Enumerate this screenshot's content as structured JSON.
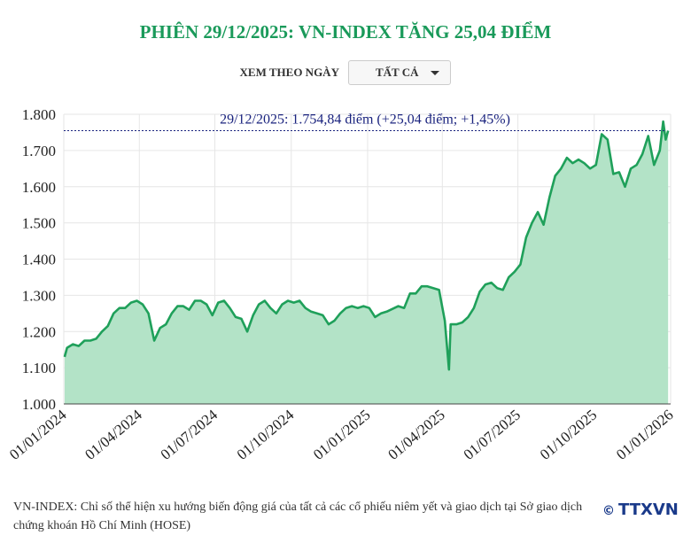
{
  "chart_data": {
    "type": "area",
    "title": "PHIÊN 29/12/2025: VN-INDEX TĂNG 25,04 ĐIỂM",
    "filter_label": "XEM THEO NGÀY",
    "filter_value": "TẤT CẢ",
    "reference_line": {
      "value": 1754.84,
      "label": "29/12/2025: 1.754,84 điểm (+25,04 điểm; +1,45%)",
      "color": "#1a237e"
    },
    "x": [
      "02/01/2024",
      "05/01/2024",
      "12/01/2024",
      "19/01/2024",
      "26/01/2024",
      "02/02/2024",
      "09/02/2024",
      "16/02/2024",
      "23/02/2024",
      "01/03/2024",
      "08/03/2024",
      "15/03/2024",
      "22/03/2024",
      "29/03/2024",
      "05/04/2024",
      "12/04/2024",
      "19/04/2024",
      "26/04/2024",
      "03/05/2024",
      "10/05/2024",
      "17/05/2024",
      "24/05/2024",
      "31/05/2024",
      "07/06/2024",
      "14/06/2024",
      "21/06/2024",
      "28/06/2024",
      "05/07/2024",
      "12/07/2024",
      "19/07/2024",
      "26/07/2024",
      "02/08/2024",
      "09/08/2024",
      "16/08/2024",
      "23/08/2024",
      "30/08/2024",
      "06/09/2024",
      "13/09/2024",
      "20/09/2024",
      "27/09/2024",
      "04/10/2024",
      "11/10/2024",
      "18/10/2024",
      "25/10/2024",
      "01/11/2024",
      "08/11/2024",
      "15/11/2024",
      "22/11/2024",
      "29/11/2024",
      "06/12/2024",
      "13/12/2024",
      "20/12/2024",
      "27/12/2024",
      "03/01/2025",
      "10/01/2025",
      "17/01/2025",
      "24/01/2025",
      "07/02/2025",
      "14/02/2025",
      "21/02/2025",
      "28/02/2025",
      "07/03/2025",
      "14/03/2025",
      "21/03/2025",
      "28/03/2025",
      "04/04/2025",
      "09/04/2025",
      "11/04/2025",
      "18/04/2025",
      "25/04/2025",
      "02/05/2025",
      "09/05/2025",
      "16/05/2025",
      "23/05/2025",
      "30/05/2025",
      "06/06/2025",
      "13/06/2025",
      "20/06/2025",
      "27/06/2025",
      "04/07/2025",
      "11/07/2025",
      "18/07/2025",
      "25/07/2025",
      "01/08/2025",
      "08/08/2025",
      "15/08/2025",
      "22/08/2025",
      "29/08/2025",
      "05/09/2025",
      "12/09/2025",
      "19/09/2025",
      "26/09/2025",
      "03/10/2025",
      "10/10/2025",
      "17/10/2025",
      "24/10/2025",
      "31/10/2025",
      "07/11/2025",
      "14/11/2025",
      "21/11/2025",
      "28/11/2025",
      "05/12/2025",
      "12/12/2025",
      "19/12/2025",
      "23/12/2025",
      "26/12/2025",
      "29/12/2025"
    ],
    "series": [
      {
        "name": "VN-INDEX",
        "color": "#1fa05a",
        "fill": "#b3e3c7",
        "values": [
          1130,
          1155,
          1165,
          1160,
          1175,
          1175,
          1180,
          1200,
          1215,
          1250,
          1265,
          1265,
          1280,
          1285,
          1275,
          1250,
          1175,
          1210,
          1220,
          1250,
          1270,
          1270,
          1260,
          1285,
          1285,
          1275,
          1245,
          1280,
          1285,
          1265,
          1240,
          1235,
          1200,
          1245,
          1275,
          1285,
          1265,
          1250,
          1275,
          1285,
          1280,
          1285,
          1265,
          1255,
          1250,
          1245,
          1220,
          1230,
          1250,
          1265,
          1270,
          1265,
          1270,
          1265,
          1240,
          1250,
          1255,
          1270,
          1265,
          1305,
          1305,
          1325,
          1325,
          1320,
          1315,
          1230,
          1095,
          1220,
          1220,
          1225,
          1240,
          1265,
          1310,
          1330,
          1335,
          1320,
          1315,
          1350,
          1365,
          1385,
          1460,
          1500,
          1530,
          1495,
          1570,
          1630,
          1650,
          1680,
          1665,
          1675,
          1665,
          1650,
          1660,
          1745,
          1730,
          1635,
          1640,
          1600,
          1650,
          1660,
          1690,
          1740,
          1660,
          1700,
          1780,
          1730,
          1754.84
        ]
      }
    ],
    "xlim": [
      "01/01/2024",
      "01/01/2026"
    ],
    "xticks": [
      "01/01/2024",
      "01/04/2024",
      "01/07/2024",
      "01/10/2024",
      "01/01/2025",
      "01/04/2025",
      "01/07/2025",
      "01/10/2025",
      "01/01/2026"
    ],
    "ylim": [
      1000,
      1800
    ],
    "yticks": [
      {
        "value": 1000,
        "label": "1.000"
      },
      {
        "value": 1100,
        "label": "1.100"
      },
      {
        "value": 1200,
        "label": "1.200"
      },
      {
        "value": 1300,
        "label": "1.300"
      },
      {
        "value": 1400,
        "label": "1.400"
      },
      {
        "value": 1500,
        "label": "1.500"
      },
      {
        "value": 1600,
        "label": "1.600"
      },
      {
        "value": 1700,
        "label": "1.700"
      },
      {
        "value": 1800,
        "label": "1.800"
      }
    ],
    "grid": true,
    "note": "VN-INDEX: Chỉ số thể hiện xu hướng biến động giá của tất cả các cổ phiếu niêm yết và giao dịch tại Sở giao dịch chứng khoán Hồ Chí Minh (HOSE)",
    "logo_symbol": "©",
    "logo": "TTXVN"
  }
}
